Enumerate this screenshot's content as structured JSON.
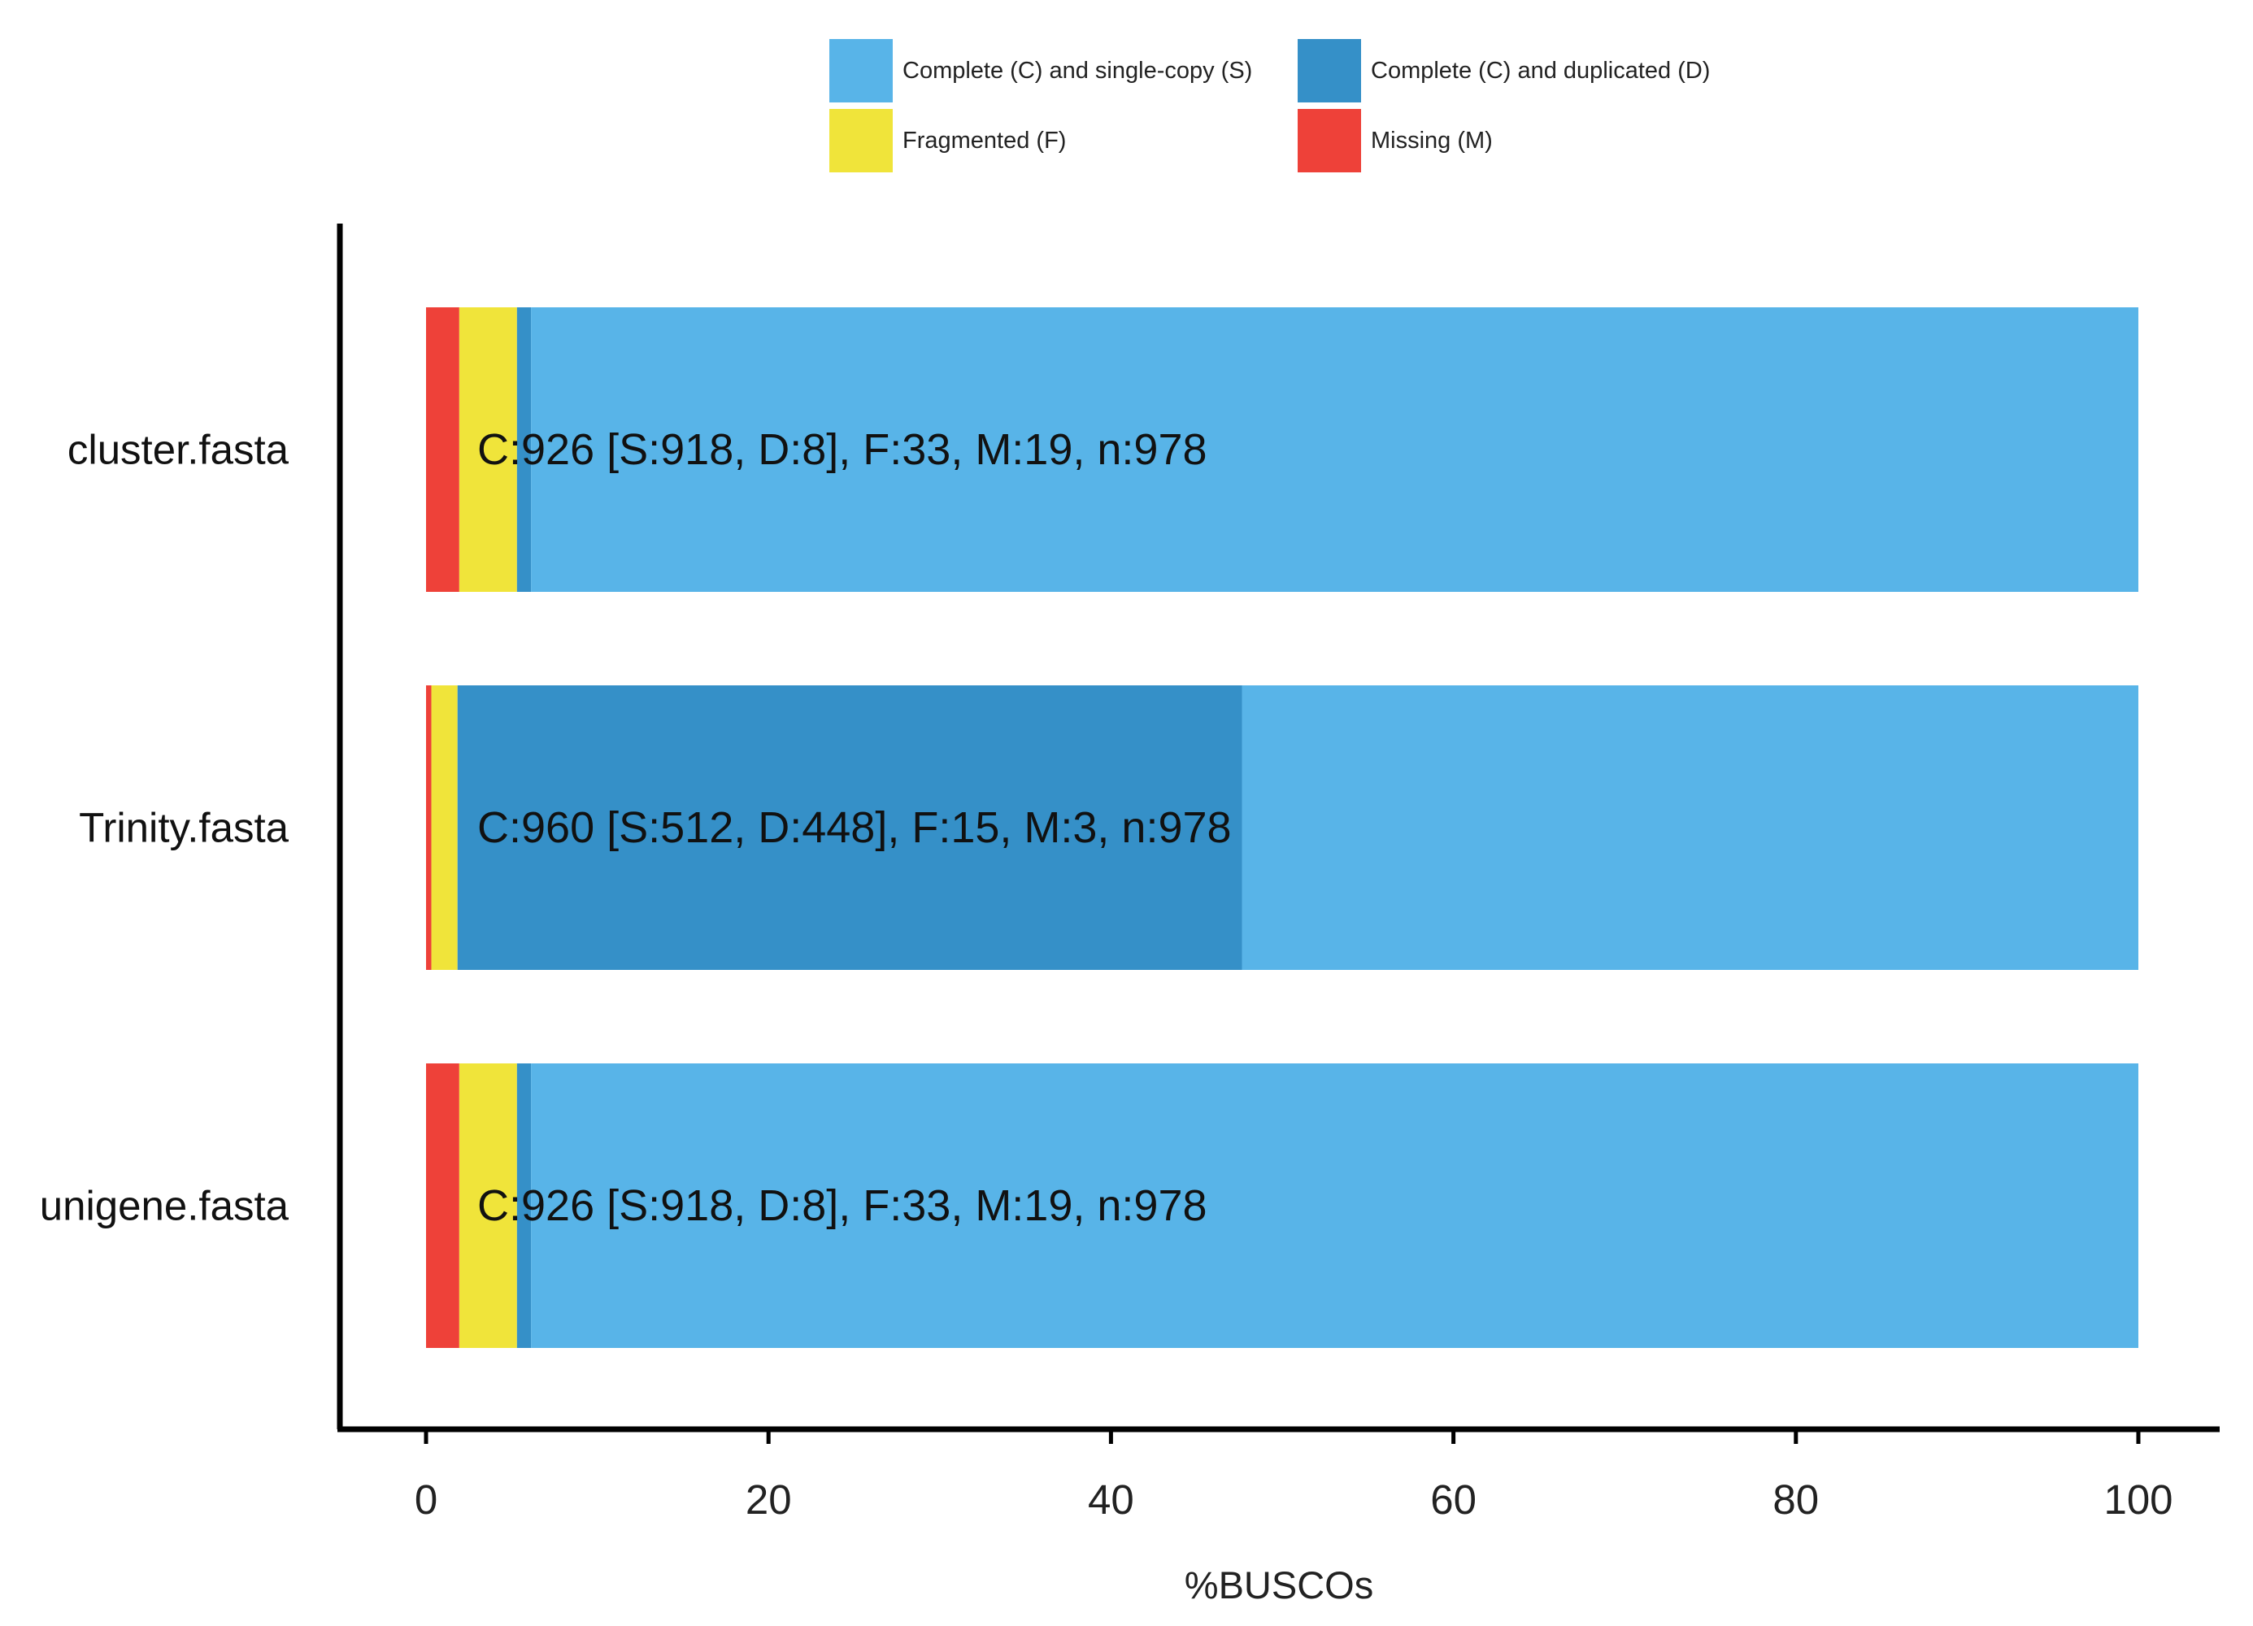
{
  "chart_data": {
    "type": "bar",
    "orientation": "horizontal",
    "stacked": true,
    "categories": [
      "cluster.fasta",
      "Trinity.fasta",
      "unigene.fasta"
    ],
    "series": [
      {
        "name": "Missing (M)",
        "key": "M",
        "color": "#ee4139",
        "values": [
          1.94,
          0.31,
          1.94
        ]
      },
      {
        "name": "Fragmented (F)",
        "key": "F",
        "color": "#f0e43a",
        "values": [
          3.37,
          1.53,
          3.37
        ]
      },
      {
        "name": "Complete (C) and duplicated (D)",
        "key": "D",
        "color": "#3590c8",
        "values": [
          0.82,
          45.81,
          0.82
        ]
      },
      {
        "name": "Complete (C) and single-copy (S)",
        "key": "S",
        "color": "#58b4e8",
        "values": [
          93.87,
          52.35,
          93.87
        ]
      }
    ],
    "legend_order": [
      "S",
      "D",
      "F",
      "M"
    ],
    "bar_labels": [
      "C:926 [S:918, D:8], F:33, M:19, n:978",
      "C:960 [S:512, D:448], F:15, M:3, n:978",
      "C:926 [S:918, D:8], F:33, M:19, n:978"
    ],
    "xlabel": "%BUSCOs",
    "ylabel": "",
    "xlim": [
      0,
      100
    ],
    "xticks": [
      "0",
      "20",
      "40",
      "60",
      "80",
      "100"
    ],
    "grid": false,
    "legend_position": "top-center"
  }
}
